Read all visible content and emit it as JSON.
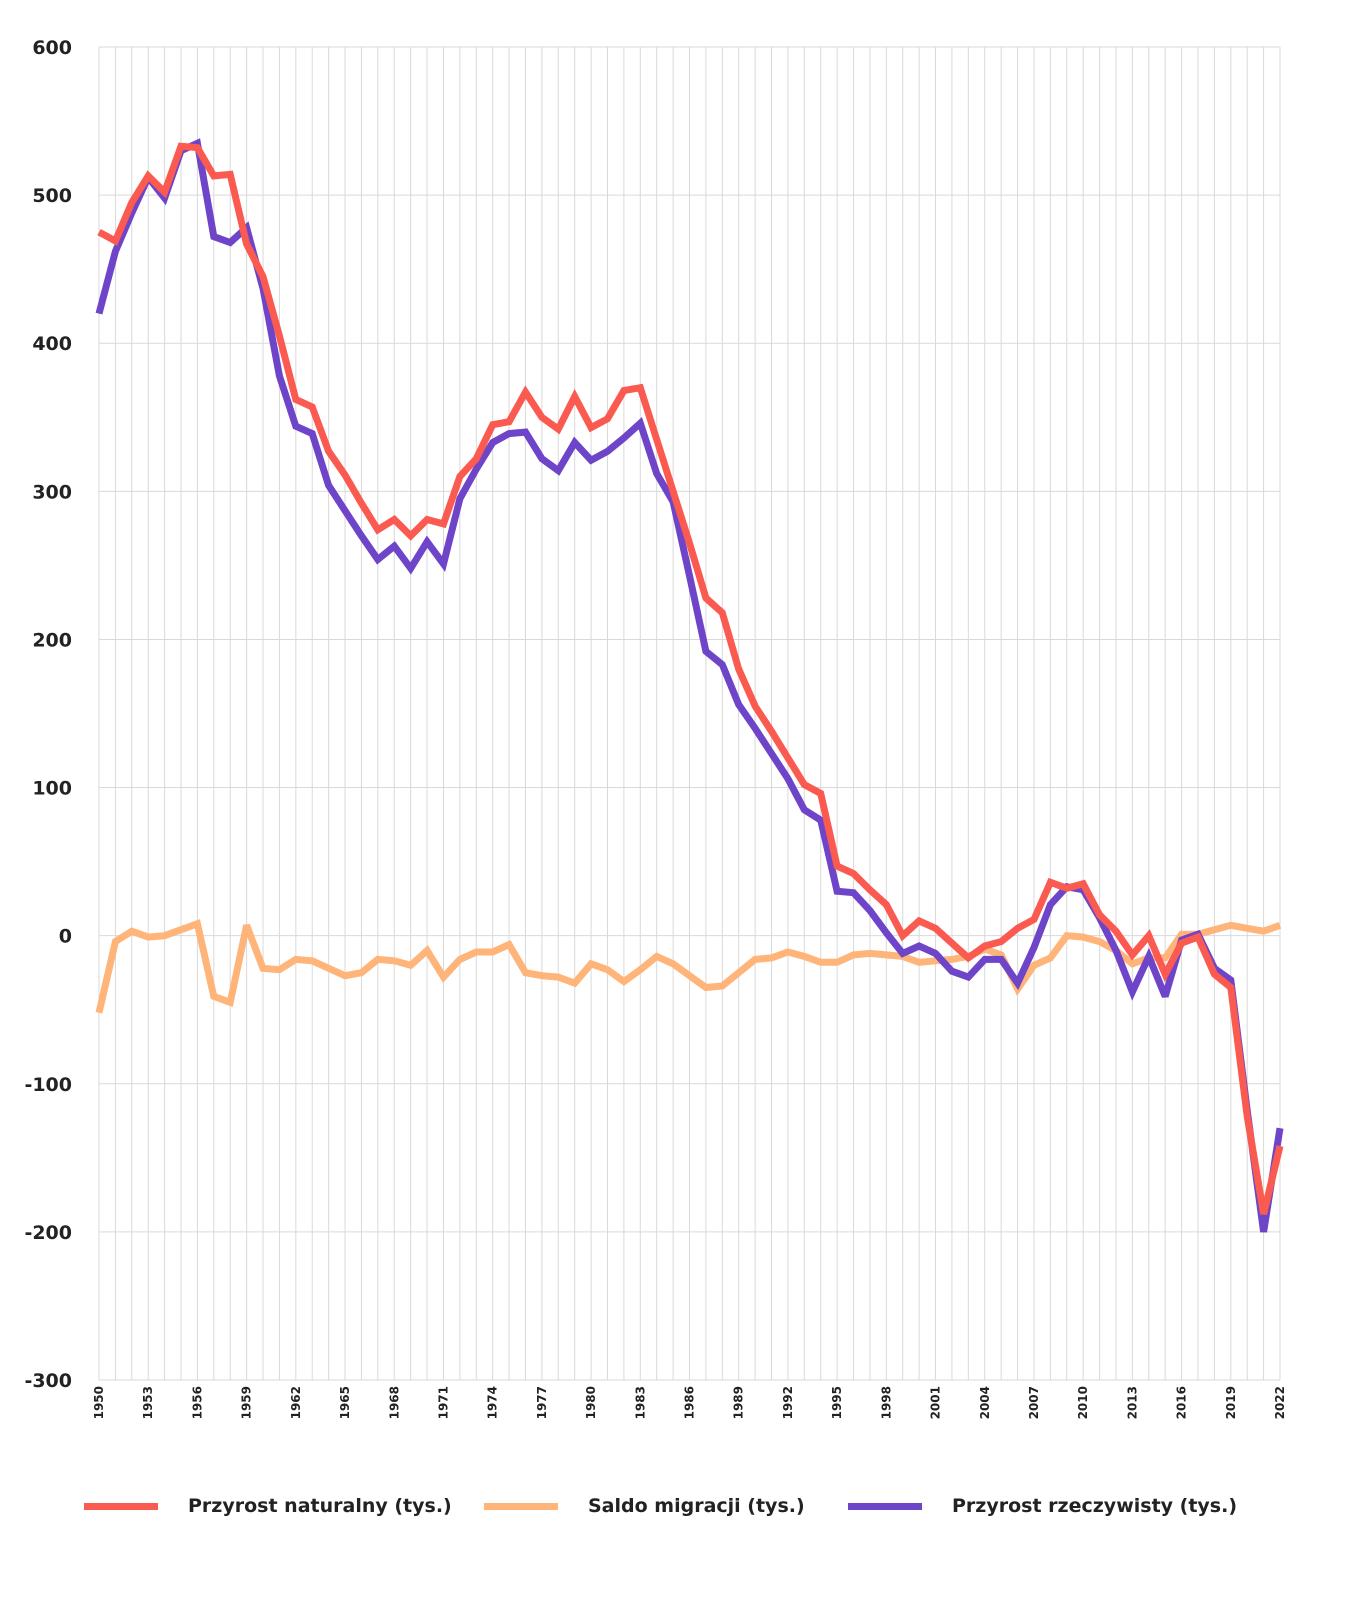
{
  "chart_data": {
    "type": "line",
    "title": "",
    "xlabel": "",
    "ylabel": "",
    "ylim": [
      -300,
      600
    ],
    "yticks": [
      "600",
      "500",
      "400",
      "300",
      "200",
      "100",
      "0",
      "-100",
      "-200",
      "-300"
    ],
    "ytick_values": [
      600,
      500,
      400,
      300,
      200,
      100,
      0,
      -100,
      -200,
      -300
    ],
    "x": [
      1950,
      1951,
      1952,
      1953,
      1954,
      1955,
      1956,
      1957,
      1958,
      1959,
      1960,
      1961,
      1962,
      1963,
      1964,
      1965,
      1966,
      1967,
      1968,
      1969,
      1970,
      1971,
      1972,
      1973,
      1974,
      1975,
      1976,
      1977,
      1978,
      1979,
      1980,
      1981,
      1982,
      1983,
      1984,
      1985,
      1986,
      1987,
      1988,
      1989,
      1990,
      1991,
      1992,
      1993,
      1994,
      1995,
      1996,
      1997,
      1998,
      1999,
      2000,
      2001,
      2002,
      2003,
      2004,
      2005,
      2006,
      2007,
      2008,
      2009,
      2010,
      2011,
      2012,
      2013,
      2014,
      2015,
      2016,
      2017,
      2018,
      2019,
      2020,
      2021,
      2022
    ],
    "xticks": [
      "1950",
      "1953",
      "1956",
      "1959",
      "1962",
      "1965",
      "1968",
      "1971",
      "1974",
      "1977",
      "1980",
      "1983",
      "1986",
      "1989",
      "1992",
      "1995",
      "1998",
      "2001",
      "2004",
      "2007",
      "2010",
      "2013",
      "2016",
      "2019",
      "2022"
    ],
    "grid": "both",
    "legend": "bottom",
    "series": [
      {
        "name": "Przyrost naturalny (tys.)",
        "color": "#fa5a50",
        "values": [
          475,
          469,
          495,
          513,
          502,
          533,
          532,
          513,
          514,
          467,
          445,
          405,
          362,
          357,
          327,
          311,
          292,
          274,
          281,
          270,
          281,
          278,
          310,
          322,
          345,
          347,
          367,
          350,
          342,
          364,
          343,
          349,
          368,
          370,
          335,
          300,
          265,
          228,
          218,
          180,
          155,
          138,
          120,
          102,
          96,
          47,
          42,
          31,
          21,
          0,
          10,
          5,
          -5,
          -15,
          -7,
          -4,
          5,
          11,
          36,
          32,
          35,
          14,
          3,
          -13,
          0,
          -26,
          -5,
          -1,
          -26,
          -35,
          -122,
          -188,
          -142
        ]
      },
      {
        "name": "Saldo migracji (tys.)",
        "color": "#ffb479",
        "values": [
          -52,
          -4,
          3,
          -1,
          0,
          4,
          8,
          -41,
          -45,
          7,
          -22,
          -23,
          -16,
          -17,
          -22,
          -27,
          -25,
          -16,
          -17,
          -20,
          -10,
          -28,
          -16,
          -11,
          -11,
          -6,
          -25,
          -27,
          -28,
          -32,
          -19,
          -23,
          -31,
          -23,
          -14,
          -19,
          -27,
          -35,
          -34,
          -25,
          -16,
          -15,
          -11,
          -14,
          -18,
          -18,
          -13,
          -12,
          -13,
          -14,
          -18,
          -17,
          -16,
          -14,
          -9,
          -13,
          -36,
          -20,
          -15,
          0,
          -1,
          -4,
          -10,
          -19,
          -15,
          -15,
          1,
          1,
          4,
          7,
          5,
          3,
          7
        ]
      },
      {
        "name": "Przyrost rzeczywisty (tys.)",
        "color": "#6e44c8",
        "values": [
          420,
          462,
          488,
          512,
          498,
          530,
          535,
          472,
          468,
          478,
          437,
          378,
          344,
          339,
          304,
          287,
          270,
          254,
          263,
          248,
          266,
          251,
          295,
          315,
          333,
          339,
          340,
          322,
          314,
          333,
          321,
          327,
          336,
          346,
          312,
          293,
          243,
          192,
          183,
          156,
          140,
          123,
          106,
          85,
          78,
          30,
          29,
          17,
          2,
          -12,
          -7,
          -12,
          -24,
          -28,
          -16,
          -16,
          -32,
          -8,
          21,
          33,
          31,
          12,
          -10,
          -38,
          -14,
          -41,
          -3,
          1,
          -22,
          -30,
          -118,
          -200,
          -130
        ]
      }
    ]
  }
}
